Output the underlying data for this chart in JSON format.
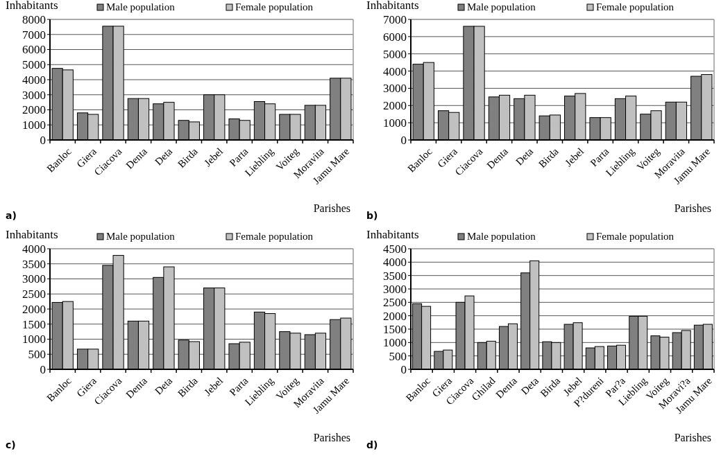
{
  "chart_data": [
    {
      "type": "bar",
      "ylabel": "Inhabitants",
      "xlabel": "Parishes",
      "annotations": [
        "a)"
      ],
      "categories": [
        "Banloc",
        "Giera",
        "Ciacova",
        "Denta",
        "Deta",
        "Birda",
        "Jebel",
        "Parta",
        "Liebling",
        "Voiteg",
        "Moravita",
        "Jamu Mare"
      ],
      "series": [
        {
          "name": "Male population",
          "color": "#808080",
          "values": [
            4750,
            1800,
            7550,
            2750,
            2400,
            1300,
            3000,
            1400,
            2550,
            1700,
            2300,
            4100
          ]
        },
        {
          "name": "Female population",
          "color": "#c0c0c0",
          "values": [
            4650,
            1700,
            7550,
            2750,
            2500,
            1200,
            3000,
            1300,
            2400,
            1700,
            2300,
            4100
          ]
        }
      ],
      "ylim": [
        0,
        8000
      ],
      "yticks": [
        0,
        1000,
        2000,
        3000,
        4000,
        5000,
        6000,
        7000,
        8000
      ],
      "grid": "y",
      "legend": "top right"
    },
    {
      "type": "bar",
      "ylabel": "Inhabitants",
      "xlabel": "Parishes",
      "annotations": [
        "b)"
      ],
      "categories": [
        "Banloc",
        "Giera",
        "Ciacova",
        "Denta",
        "Deta",
        "Birda",
        "Jebel",
        "Parta",
        "Liebling",
        "Voiteg",
        "Moravita",
        "Jamu Mare"
      ],
      "series": [
        {
          "name": "Male population",
          "color": "#808080",
          "values": [
            4400,
            1700,
            6600,
            2500,
            2400,
            1400,
            2550,
            1300,
            2400,
            1500,
            2200,
            3700
          ]
        },
        {
          "name": "Female population",
          "color": "#c0c0c0",
          "values": [
            4500,
            1600,
            6600,
            2600,
            2600,
            1450,
            2700,
            1300,
            2550,
            1700,
            2200,
            3800
          ]
        }
      ],
      "ylim": [
        0,
        7000
      ],
      "yticks": [
        0,
        1000,
        2000,
        3000,
        4000,
        5000,
        6000,
        7000
      ],
      "grid": "y",
      "legend": "top right"
    },
    {
      "type": "bar",
      "ylabel": "Inhabitants",
      "xlabel": "Parishes",
      "annotations": [
        "c)"
      ],
      "categories": [
        "Banloc",
        "Giera",
        "Ciacova",
        "Denta",
        "Deta",
        "Birda",
        "Jebel",
        "Parta",
        "Liebling",
        "Voiteg",
        "Moravita",
        "Jamu Mare"
      ],
      "series": [
        {
          "name": "Male population",
          "color": "#808080",
          "values": [
            2220,
            670,
            3450,
            1600,
            3050,
            970,
            2700,
            850,
            1900,
            1250,
            1150,
            1650
          ]
        },
        {
          "name": "Female population",
          "color": "#c0c0c0",
          "values": [
            2250,
            670,
            3780,
            1600,
            3400,
            920,
            2700,
            900,
            1850,
            1200,
            1200,
            1700
          ]
        }
      ],
      "ylim": [
        0,
        4000
      ],
      "yticks": [
        0,
        500,
        1000,
        1500,
        2000,
        2500,
        3000,
        3500,
        4000
      ],
      "grid": "y",
      "legend": "top right"
    },
    {
      "type": "bar",
      "ylabel": "Inhabitants",
      "xlabel": "Parishes",
      "annotations": [
        "d)"
      ],
      "categories": [
        "Banloc",
        "Giera",
        "Ciacova",
        "Ghilad",
        "Denta",
        "Deta",
        "Birda",
        "Jebel",
        "P?dureni",
        "Par?a",
        "Liebling",
        "Voiteg",
        "Moravi?a",
        "Jamu Mare"
      ],
      "series": [
        {
          "name": "Male population",
          "color": "#808080",
          "values": [
            2450,
            670,
            2500,
            1000,
            1600,
            3600,
            1030,
            1680,
            800,
            870,
            1980,
            1250,
            1370,
            1650
          ]
        },
        {
          "name": "Female population",
          "color": "#c0c0c0",
          "values": [
            2350,
            720,
            2740,
            1050,
            1700,
            4050,
            1000,
            1740,
            850,
            900,
            1980,
            1200,
            1450,
            1680
          ]
        }
      ],
      "ylim": [
        0,
        4500
      ],
      "yticks": [
        0,
        500,
        1000,
        1500,
        2000,
        2500,
        3000,
        3500,
        4000,
        4500
      ],
      "grid": "y",
      "legend": "top right"
    }
  ]
}
